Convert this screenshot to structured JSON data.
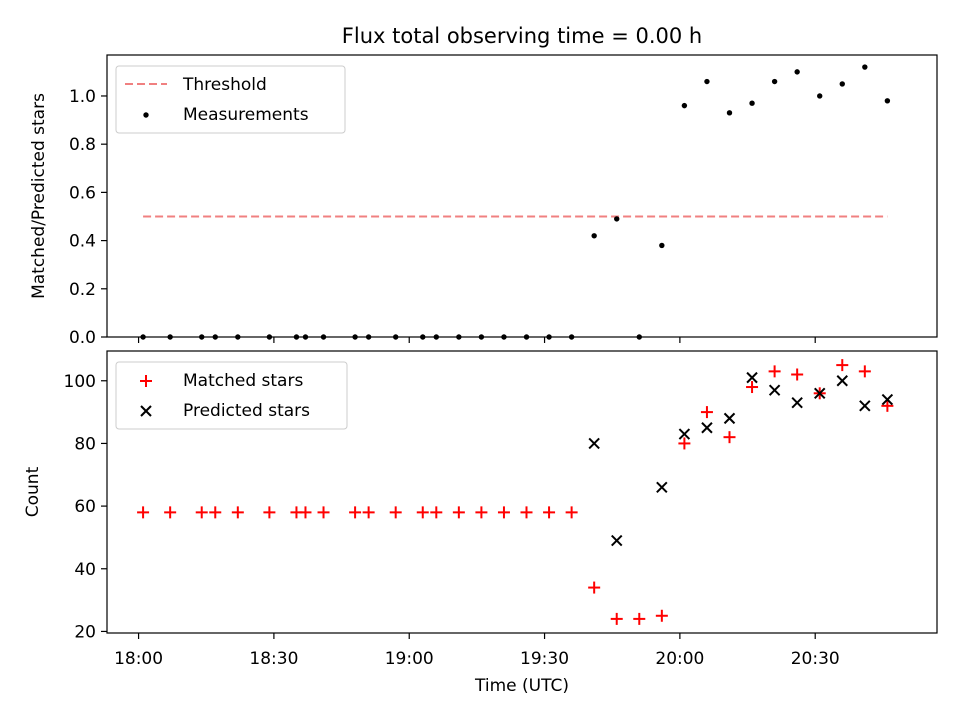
{
  "title": "Flux total observing time = 0.00 h",
  "xlabel": "Time (UTC)",
  "colors": {
    "threshold": "#f08080",
    "measurement": "#000000",
    "matched": "#ff0000",
    "predicted": "#000000"
  },
  "chart_data": [
    {
      "type": "scatter",
      "panel": "top",
      "ylabel": "Matched/Predicted stars",
      "xlim": [
        "17:53",
        "20:57"
      ],
      "ylim": [
        0,
        1.17
      ],
      "xticks": [
        "18:00",
        "18:30",
        "19:00",
        "19:30",
        "20:00",
        "20:30"
      ],
      "yticks": [
        "0.0",
        "0.2",
        "0.4",
        "0.6",
        "0.8",
        "1.0"
      ],
      "legend_position": "upper-left",
      "threshold": {
        "name": "Threshold",
        "y": 0.5,
        "x_start": "18:01",
        "x_end": "20:46"
      },
      "series": [
        {
          "name": "Measurements",
          "x": [
            "18:01",
            "18:07",
            "18:14",
            "18:17",
            "18:22",
            "18:29",
            "18:35",
            "18:37",
            "18:41",
            "18:48",
            "18:51",
            "18:57",
            "19:03",
            "19:06",
            "19:11",
            "19:16",
            "19:21",
            "19:26",
            "19:31",
            "19:36",
            "19:41",
            "19:46",
            "19:51",
            "19:56",
            "20:01",
            "20:06",
            "20:11",
            "20:16",
            "20:21",
            "20:26",
            "20:31",
            "20:36",
            "20:41",
            "20:46"
          ],
          "y": [
            0,
            0,
            0,
            0,
            0,
            0,
            0,
            0,
            0,
            0,
            0,
            0,
            0,
            0,
            0,
            0,
            0,
            0,
            0,
            0,
            0.42,
            0.49,
            0,
            0.38,
            0.96,
            1.06,
            0.93,
            0.97,
            1.06,
            1.1,
            1.0,
            1.05,
            1.12,
            0.98
          ]
        }
      ]
    },
    {
      "type": "scatter",
      "panel": "bottom",
      "ylabel": "Count",
      "xlim": [
        "17:53",
        "20:57"
      ],
      "ylim": [
        19.5,
        109.5
      ],
      "xticks": [
        "18:00",
        "18:30",
        "19:00",
        "19:30",
        "20:00",
        "20:30"
      ],
      "yticks": [
        "20",
        "40",
        "60",
        "80",
        "100"
      ],
      "legend_position": "upper-left",
      "series": [
        {
          "name": "Matched stars",
          "x": [
            "18:01",
            "18:07",
            "18:14",
            "18:17",
            "18:22",
            "18:29",
            "18:35",
            "18:37",
            "18:41",
            "18:48",
            "18:51",
            "18:57",
            "19:03",
            "19:06",
            "19:11",
            "19:16",
            "19:21",
            "19:26",
            "19:31",
            "19:36",
            "19:41",
            "19:46",
            "19:51",
            "19:56",
            "20:01",
            "20:06",
            "20:11",
            "20:16",
            "20:21",
            "20:26",
            "20:31",
            "20:36",
            "20:41",
            "20:46"
          ],
          "y": [
            58,
            58,
            58,
            58,
            58,
            58,
            58,
            58,
            58,
            58,
            58,
            58,
            58,
            58,
            58,
            58,
            58,
            58,
            58,
            58,
            34,
            24,
            24,
            25,
            80,
            90,
            82,
            98,
            103,
            102,
            96,
            105,
            103,
            92
          ]
        },
        {
          "name": "Predicted stars",
          "x": [
            "19:41",
            "19:46",
            "19:56",
            "20:01",
            "20:06",
            "20:11",
            "20:16",
            "20:21",
            "20:26",
            "20:31",
            "20:36",
            "20:41",
            "20:46"
          ],
          "y": [
            80,
            49,
            66,
            83,
            85,
            88,
            101,
            97,
            93,
            96,
            100,
            92,
            94
          ]
        }
      ]
    }
  ]
}
